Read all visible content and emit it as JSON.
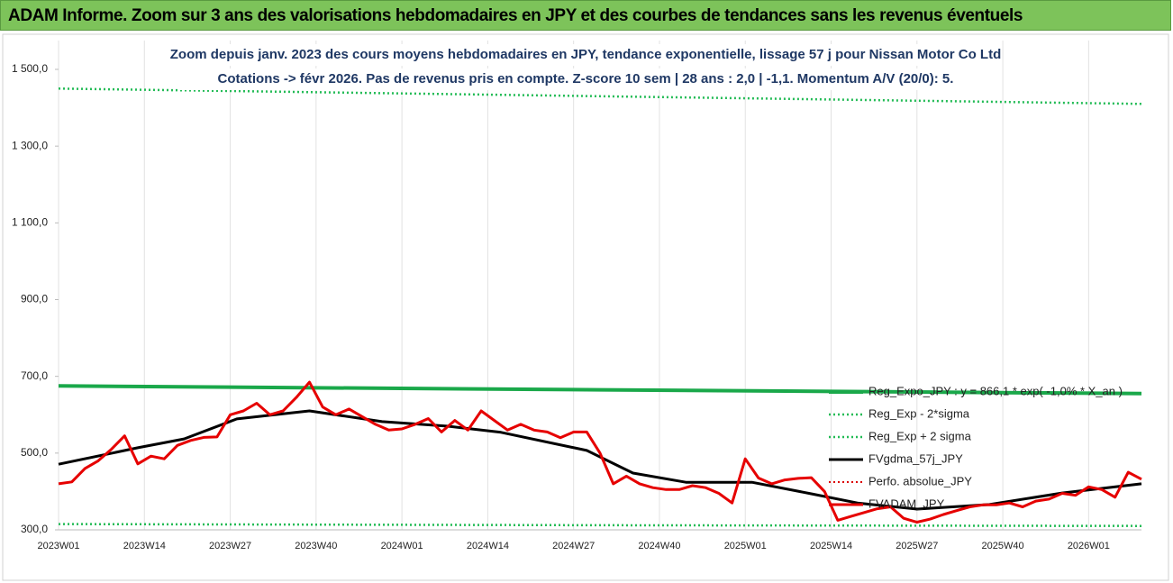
{
  "header": {
    "title": "ADAM Informe. Zoom sur 3 ans des valorisations hebdomadaires en JPY et des courbes de tendances sans les revenus éventuels"
  },
  "chart_data": {
    "type": "line",
    "subtitle": [
      "Zoom depuis janv. 2023 des cours moyens hebdomadaires en JPY, tendance exponentielle, lissage 57 j pour Nissan Motor Co Ltd",
      "Cotations -> févr 2026. Pas de revenus pris en compte. Z-score 10 sem | 28 ans : 2,0 | -1,1. Momentum A/V (20/0): 5."
    ],
    "xlim": [
      0,
      164
    ],
    "xticks": [
      {
        "value": 0,
        "label": "2023W01"
      },
      {
        "value": 13,
        "label": "2023W14"
      },
      {
        "value": 26,
        "label": "2023W27"
      },
      {
        "value": 39,
        "label": "2023W40"
      },
      {
        "value": 52,
        "label": "2024W01"
      },
      {
        "value": 65,
        "label": "2024W14"
      },
      {
        "value": 78,
        "label": "2024W27"
      },
      {
        "value": 91,
        "label": "2024W40"
      },
      {
        "value": 104,
        "label": "2025W01"
      },
      {
        "value": 117,
        "label": "2025W14"
      },
      {
        "value": 130,
        "label": "2025W27"
      },
      {
        "value": 143,
        "label": "2025W40"
      },
      {
        "value": 156,
        "label": "2026W01"
      }
    ],
    "ylim": [
      300,
      1500
    ],
    "yticks": [
      {
        "value": 300,
        "label": "300,0"
      },
      {
        "value": 500,
        "label": "500,0"
      },
      {
        "value": 700,
        "label": "700,0"
      },
      {
        "value": 900,
        "label": "900,0"
      },
      {
        "value": 1100,
        "label": "1 100,0"
      },
      {
        "value": 1300,
        "label": "1 300,0"
      },
      {
        "value": 1500,
        "label": "1 500,0"
      }
    ],
    "xgrid": true,
    "legend": "right",
    "series": [
      {
        "name": "Reg_Expo_JPY : y = 866,1 * exp( -1,0% * X_an )",
        "color": "#1aa84a",
        "style": "solid",
        "width": 4,
        "x": [
          0,
          82,
          164
        ],
        "values": [
          675,
          665,
          655
        ]
      },
      {
        "name": "Reg_Exp - 2*sigma",
        "color": "#22bb55",
        "style": "dotted",
        "width": 2.5,
        "x": [
          0,
          82,
          164
        ],
        "values": [
          315,
          312,
          310
        ]
      },
      {
        "name": "Reg_Exp + 2 sigma",
        "color": "#22bb55",
        "style": "dotted",
        "width": 2.5,
        "x": [
          0,
          82,
          164
        ],
        "values": [
          1450,
          1430,
          1410
        ]
      },
      {
        "name": "FVgdma_57j_JPY",
        "color": "#000000",
        "style": "solid",
        "width": 3,
        "x": [
          0,
          12,
          19,
          27,
          38,
          49,
          59,
          67,
          80,
          87,
          95,
          105,
          114,
          121,
          130,
          141,
          152,
          164
        ],
        "values": [
          471,
          514,
          537,
          589,
          610,
          582,
          570,
          554,
          507,
          448,
          424,
          424,
          394,
          370,
          354,
          366,
          396,
          420
        ]
      },
      {
        "name": "Perfo. absolue_JPY",
        "color": "#dd0000",
        "style": "dotted",
        "width": 2,
        "x": [],
        "values": []
      },
      {
        "name": "FVADAM_JPY",
        "color": "#e60000",
        "style": "solid",
        "width": 3,
        "x": [
          0,
          2,
          4,
          6,
          8,
          10,
          12,
          14,
          16,
          18,
          20,
          22,
          24,
          26,
          28,
          30,
          32,
          34,
          36,
          38,
          40,
          42,
          44,
          46,
          48,
          50,
          52,
          54,
          56,
          58,
          60,
          62,
          64,
          66,
          68,
          70,
          72,
          74,
          76,
          78,
          80,
          82,
          84,
          86,
          88,
          90,
          92,
          94,
          96,
          98,
          100,
          102,
          104,
          106,
          108,
          110,
          112,
          114,
          116,
          118,
          120,
          122,
          124,
          126,
          128,
          130,
          132,
          134,
          136,
          138,
          140,
          142,
          144,
          146,
          148,
          150,
          152,
          154,
          156,
          158,
          160,
          162,
          164
        ],
        "values": [
          420,
          425,
          460,
          480,
          510,
          545,
          472,
          492,
          485,
          520,
          533,
          541,
          542,
          600,
          610,
          630,
          600,
          610,
          645,
          685,
          620,
          600,
          615,
          595,
          575,
          560,
          563,
          575,
          590,
          555,
          585,
          560,
          610,
          585,
          560,
          575,
          560,
          555,
          540,
          555,
          555,
          500,
          420,
          440,
          420,
          410,
          405,
          405,
          415,
          410,
          395,
          370,
          485,
          435,
          420,
          430,
          434,
          436,
          400,
          325,
          335,
          345,
          355,
          360,
          330,
          320,
          328,
          340,
          350,
          360,
          365,
          365,
          370,
          360,
          375,
          380,
          395,
          390,
          412,
          405,
          385,
          450,
          432
        ]
      }
    ]
  }
}
